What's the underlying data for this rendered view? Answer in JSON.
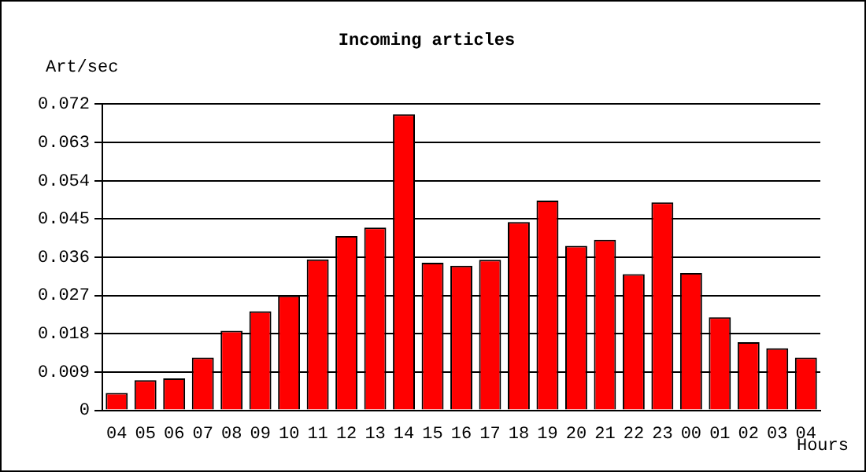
{
  "chart_data": {
    "type": "bar",
    "title": "Incoming articles",
    "ylabel": "Art/sec",
    "xlabel": "Hours",
    "categories": [
      "04",
      "05",
      "06",
      "07",
      "08",
      "09",
      "10",
      "11",
      "12",
      "13",
      "14",
      "15",
      "16",
      "17",
      "18",
      "19",
      "20",
      "21",
      "22",
      "23",
      "00",
      "01",
      "02",
      "03",
      "04"
    ],
    "values": [
      0.0041,
      0.0071,
      0.0075,
      0.0124,
      0.0187,
      0.0233,
      0.027,
      0.0355,
      0.041,
      0.043,
      0.0696,
      0.0347,
      0.034,
      0.0354,
      0.0443,
      0.0493,
      0.0387,
      0.0401,
      0.032,
      0.0489,
      0.0323,
      0.0219,
      0.016,
      0.0146,
      0.0124
    ],
    "color": "#ff0000",
    "ylim": [
      0,
      0.072
    ],
    "yticks": [
      0,
      0.009,
      0.018,
      0.027,
      0.036,
      0.045,
      0.054,
      0.063,
      0.072
    ],
    "grid": "y",
    "legend": false
  }
}
